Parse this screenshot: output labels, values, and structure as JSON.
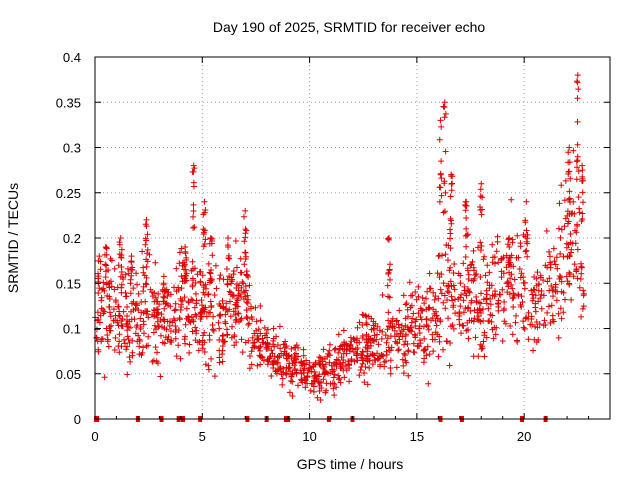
{
  "chart_data": {
    "type": "scatter",
    "title": "Day 190 of 2025, SRMTID for receiver echo",
    "xlabel": "GPS time / hours",
    "ylabel": "SRMTID / TECUs",
    "xlim": [
      0,
      24
    ],
    "ylim": [
      0,
      0.4
    ],
    "xticks": [
      0,
      5,
      10,
      15,
      20
    ],
    "xtick_labels": [
      "0",
      "5",
      "10",
      "15",
      "20"
    ],
    "yticks": [
      0,
      0.05,
      0.1,
      0.15,
      0.2,
      0.25,
      0.3,
      0.35,
      0.4
    ],
    "ytick_labels": [
      "0",
      "0.05",
      "0.1",
      "0.15",
      "0.2",
      "0.25",
      "0.3",
      "0.35",
      "0.4"
    ],
    "grid": true,
    "marker": "+",
    "color": "#e00000",
    "trend": [
      {
        "x": 0.0,
        "y": 0.1
      },
      {
        "x": 0.5,
        "y": 0.12
      },
      {
        "x": 1.0,
        "y": 0.12
      },
      {
        "x": 1.5,
        "y": 0.11
      },
      {
        "x": 2.0,
        "y": 0.12
      },
      {
        "x": 2.5,
        "y": 0.13
      },
      {
        "x": 3.0,
        "y": 0.11
      },
      {
        "x": 3.5,
        "y": 0.11
      },
      {
        "x": 4.0,
        "y": 0.12
      },
      {
        "x": 4.5,
        "y": 0.14
      },
      {
        "x": 5.0,
        "y": 0.12
      },
      {
        "x": 5.5,
        "y": 0.12
      },
      {
        "x": 6.0,
        "y": 0.11
      },
      {
        "x": 6.5,
        "y": 0.12
      },
      {
        "x": 7.0,
        "y": 0.13
      },
      {
        "x": 7.5,
        "y": 0.09
      },
      {
        "x": 8.0,
        "y": 0.07
      },
      {
        "x": 8.5,
        "y": 0.07
      },
      {
        "x": 9.0,
        "y": 0.06
      },
      {
        "x": 9.5,
        "y": 0.06
      },
      {
        "x": 10.0,
        "y": 0.05
      },
      {
        "x": 10.5,
        "y": 0.05
      },
      {
        "x": 11.0,
        "y": 0.06
      },
      {
        "x": 11.5,
        "y": 0.06
      },
      {
        "x": 12.0,
        "y": 0.08
      },
      {
        "x": 12.5,
        "y": 0.08
      },
      {
        "x": 13.0,
        "y": 0.08
      },
      {
        "x": 13.5,
        "y": 0.09
      },
      {
        "x": 14.0,
        "y": 0.09
      },
      {
        "x": 14.5,
        "y": 0.1
      },
      {
        "x": 15.0,
        "y": 0.1
      },
      {
        "x": 15.5,
        "y": 0.1
      },
      {
        "x": 16.0,
        "y": 0.13
      },
      {
        "x": 16.5,
        "y": 0.15
      },
      {
        "x": 17.0,
        "y": 0.13
      },
      {
        "x": 17.5,
        "y": 0.14
      },
      {
        "x": 18.0,
        "y": 0.13
      },
      {
        "x": 18.5,
        "y": 0.14
      },
      {
        "x": 19.0,
        "y": 0.14
      },
      {
        "x": 19.5,
        "y": 0.15
      },
      {
        "x": 20.0,
        "y": 0.15
      },
      {
        "x": 20.5,
        "y": 0.12
      },
      {
        "x": 21.0,
        "y": 0.13
      },
      {
        "x": 21.5,
        "y": 0.15
      },
      {
        "x": 22.0,
        "y": 0.19
      },
      {
        "x": 22.5,
        "y": 0.21
      },
      {
        "x": 22.8,
        "y": 0.14
      }
    ],
    "spikes": [
      {
        "x": 0.2,
        "y": 0.18
      },
      {
        "x": 0.5,
        "y": 0.19
      },
      {
        "x": 1.2,
        "y": 0.2
      },
      {
        "x": 1.7,
        "y": 0.18
      },
      {
        "x": 2.4,
        "y": 0.22
      },
      {
        "x": 3.2,
        "y": 0.15
      },
      {
        "x": 4.2,
        "y": 0.19
      },
      {
        "x": 4.6,
        "y": 0.28
      },
      {
        "x": 5.1,
        "y": 0.24
      },
      {
        "x": 5.4,
        "y": 0.2
      },
      {
        "x": 6.2,
        "y": 0.2
      },
      {
        "x": 7.0,
        "y": 0.23
      },
      {
        "x": 13.7,
        "y": 0.2
      },
      {
        "x": 16.3,
        "y": 0.35
      },
      {
        "x": 16.1,
        "y": 0.33
      },
      {
        "x": 16.6,
        "y": 0.27
      },
      {
        "x": 17.3,
        "y": 0.24
      },
      {
        "x": 18.0,
        "y": 0.26
      },
      {
        "x": 19.3,
        "y": 0.2
      },
      {
        "x": 20.1,
        "y": 0.24
      },
      {
        "x": 22.1,
        "y": 0.3
      },
      {
        "x": 22.5,
        "y": 0.38
      },
      {
        "x": 22.7,
        "y": 0.28
      }
    ],
    "gap_markers_x": [
      0.05,
      0.1,
      2.0,
      3.1,
      3.9,
      4.1,
      4.9,
      7.1,
      8.0,
      8.9,
      9.0,
      10.9,
      12.0,
      16.1,
      17.1,
      19.9,
      21.0
    ]
  }
}
